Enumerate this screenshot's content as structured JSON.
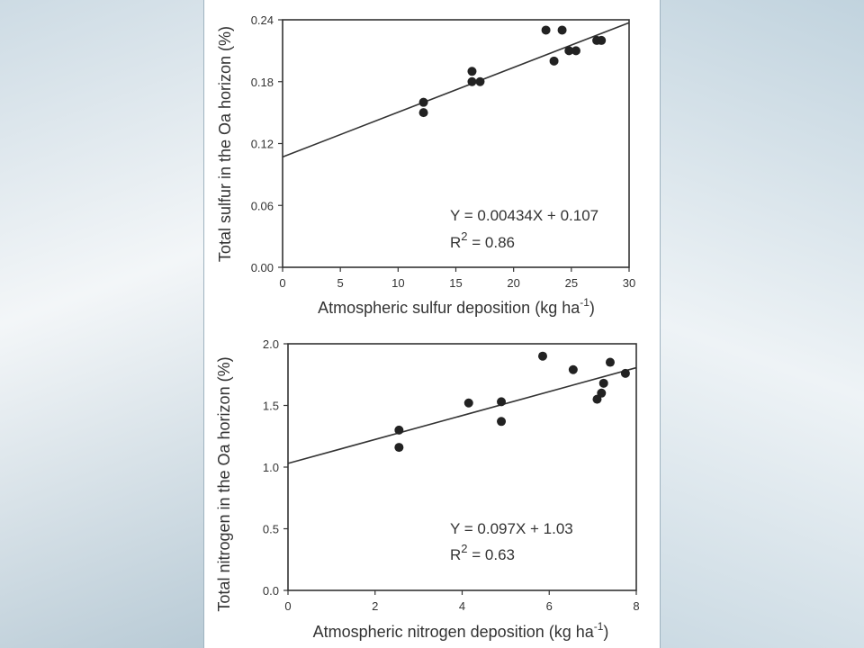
{
  "chart_data": [
    {
      "type": "scatter",
      "xlabel": "Atmospheric sulfur deposition (kg ha",
      "xlabel_sup": "-1",
      "xlabel_close": ")",
      "ylabel": "Total sulfur in the Oa horizon (%)",
      "xlim": [
        0,
        30
      ],
      "ylim": [
        0,
        0.24
      ],
      "xticks": [
        "0",
        "5",
        "10",
        "15",
        "20",
        "25",
        "30"
      ],
      "xtick_values": [
        0,
        5,
        10,
        15,
        20,
        25,
        30
      ],
      "yticks": [
        "0.00",
        "0.06",
        "0.12",
        "0.18",
        "0.24"
      ],
      "ytick_values": [
        0,
        0.06,
        0.12,
        0.18,
        0.24
      ],
      "points": [
        [
          12.2,
          0.16
        ],
        [
          12.2,
          0.15
        ],
        [
          16.4,
          0.19
        ],
        [
          16.4,
          0.18
        ],
        [
          17.1,
          0.18
        ],
        [
          22.8,
          0.23
        ],
        [
          24.2,
          0.23
        ],
        [
          23.5,
          0.2
        ],
        [
          24.8,
          0.21
        ],
        [
          25.4,
          0.21
        ],
        [
          27.2,
          0.22
        ],
        [
          27.6,
          0.22
        ]
      ],
      "fit": {
        "slope": 0.00434,
        "intercept": 0.107
      },
      "equation_line1": "Y = 0.00434X + 0.107",
      "equation_r2_prefix": "R",
      "equation_r2_sup": "2",
      "equation_r2_value": " = 0.86",
      "grid": false
    },
    {
      "type": "scatter",
      "xlabel": "Atmospheric nitrogen deposition (kg ha",
      "xlabel_sup": "-1",
      "xlabel_close": ")",
      "ylabel": "Total nitrogen in the Oa horizon (%)",
      "xlim": [
        0,
        8
      ],
      "ylim": [
        0,
        2.0
      ],
      "xticks": [
        "0",
        "2",
        "4",
        "6",
        "8"
      ],
      "xtick_values": [
        0,
        2,
        4,
        6,
        8
      ],
      "yticks": [
        "0.0",
        "0.5",
        "1.0",
        "1.5",
        "2.0"
      ],
      "ytick_values": [
        0,
        0.5,
        1.0,
        1.5,
        2.0
      ],
      "points": [
        [
          2.55,
          1.3
        ],
        [
          2.55,
          1.16
        ],
        [
          4.15,
          1.52
        ],
        [
          4.9,
          1.53
        ],
        [
          4.9,
          1.37
        ],
        [
          5.85,
          1.9
        ],
        [
          6.55,
          1.79
        ],
        [
          7.1,
          1.55
        ],
        [
          7.2,
          1.6
        ],
        [
          7.25,
          1.68
        ],
        [
          7.4,
          1.85
        ],
        [
          7.75,
          1.76
        ]
      ],
      "fit": {
        "slope": 0.097,
        "intercept": 1.03
      },
      "equation_line1": "Y = 0.097X + 1.03",
      "equation_r2_prefix": "R",
      "equation_r2_sup": "2",
      "equation_r2_value": "  = 0.63",
      "grid": false
    }
  ]
}
